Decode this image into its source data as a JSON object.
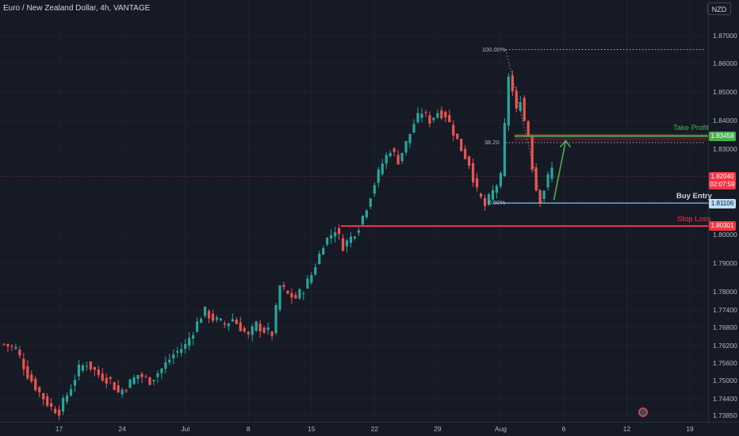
{
  "header": {
    "title": "Euro / New Zealand Dollar, 4h, VANTAGE",
    "currency": "NZD"
  },
  "colors": {
    "background": "#161a25",
    "up": "#26a69a",
    "down": "#ef5350",
    "take_profit": "#4caf50",
    "stop_loss": "#f23645",
    "buy_entry": "#90caf9",
    "current": "#f23645"
  },
  "chart_data": {
    "type": "candlestick",
    "interval": "4h",
    "y_range": [
      1.7375,
      1.8745
    ],
    "y_ticks": [
      "1.87000",
      "1.86000",
      "1.85000",
      "1.84000",
      "1.83000",
      "1.80000",
      "1.79000",
      "1.78000",
      "1.77400",
      "1.76800",
      "1.76200",
      "1.75600",
      "1.75000",
      "1.74400",
      "1.73850"
    ],
    "y_tick_values": [
      1.87,
      1.86,
      1.85,
      1.84,
      1.83,
      1.8,
      1.79,
      1.78,
      1.774,
      1.768,
      1.762,
      1.756,
      1.75,
      1.744,
      1.7385
    ],
    "x_ticks": [
      "17",
      "24",
      "Jul",
      "8",
      "15",
      "22",
      "29",
      "Aug",
      "6",
      "12",
      "19"
    ],
    "x_tick_index": [
      14,
      30,
      46,
      62,
      78,
      94,
      110,
      126,
      142,
      158,
      174
    ],
    "x_range_index": [
      -1,
      176
    ],
    "path_points": [
      [
        0,
        1.7625
      ],
      [
        3,
        1.761
      ],
      [
        6,
        1.752
      ],
      [
        9,
        1.746
      ],
      [
        12,
        1.741
      ],
      [
        14,
        1.74
      ],
      [
        17,
        1.748
      ],
      [
        19,
        1.754
      ],
      [
        21,
        1.756
      ],
      [
        24,
        1.752
      ],
      [
        27,
        1.75
      ],
      [
        29,
        1.746
      ],
      [
        31,
        1.748
      ],
      [
        34,
        1.752
      ],
      [
        37,
        1.75
      ],
      [
        40,
        1.754
      ],
      [
        43,
        1.759
      ],
      [
        46,
        1.762
      ],
      [
        48,
        1.767
      ],
      [
        50,
        1.772
      ],
      [
        51,
        1.7735
      ],
      [
        53,
        1.771
      ],
      [
        56,
        1.769
      ],
      [
        58,
        1.771
      ],
      [
        60,
        1.768
      ],
      [
        62,
        1.765
      ],
      [
        64,
        1.769
      ],
      [
        66,
        1.767
      ],
      [
        68,
        1.766
      ],
      [
        69,
        1.774
      ],
      [
        70,
        1.782
      ],
      [
        72,
        1.779
      ],
      [
        74,
        1.778
      ],
      [
        76,
        1.781
      ],
      [
        78,
        1.786
      ],
      [
        80,
        1.793
      ],
      [
        81,
        1.797
      ],
      [
        83,
        1.8
      ],
      [
        84,
        1.802
      ],
      [
        86,
        1.796
      ],
      [
        88,
        1.799
      ],
      [
        90,
        1.803
      ],
      [
        92,
        1.81
      ],
      [
        94,
        1.818
      ],
      [
        96,
        1.825
      ],
      [
        98,
        1.83
      ],
      [
        100,
        1.826
      ],
      [
        102,
        1.832
      ],
      [
        104,
        1.839
      ],
      [
        106,
        1.843
      ],
      [
        108,
        1.84
      ],
      [
        110,
        1.843
      ],
      [
        112,
        1.842
      ],
      [
        114,
        1.836
      ],
      [
        116,
        1.83
      ],
      [
        118,
        1.825
      ],
      [
        120,
        1.815
      ],
      [
        122,
        1.81
      ],
      [
        124,
        1.815
      ],
      [
        126,
        1.82
      ],
      [
        127,
        1.838
      ],
      [
        128,
        1.856
      ],
      [
        129,
        1.85
      ],
      [
        130,
        1.843
      ],
      [
        131,
        1.848
      ],
      [
        132,
        1.84
      ],
      [
        133,
        1.835
      ],
      [
        134,
        1.824
      ],
      [
        135,
        1.816
      ],
      [
        136,
        1.8125
      ],
      [
        137,
        1.816
      ],
      [
        138,
        1.82
      ],
      [
        139,
        1.823
      ]
    ],
    "candles_count": 140,
    "current_price": "1.82040",
    "countdown": "02:07:59",
    "levels": {
      "take_profit": {
        "label": "Take Profit",
        "price": "1.83458",
        "value": 1.83458
      },
      "buy_entry": {
        "label": "Buy Entry",
        "price": "1.81106",
        "value": 1.81106
      },
      "stop_loss": {
        "label": "Stop Loss",
        "price": "1.80301",
        "value": 1.80301
      }
    },
    "fibonacci": {
      "high": {
        "label": "100.00%",
        "value": 1.865
      },
      "mid": {
        "label": "38.20",
        "value": 1.83225
      },
      "low": {
        "label": "0.00%",
        "value": 1.8111
      }
    }
  }
}
